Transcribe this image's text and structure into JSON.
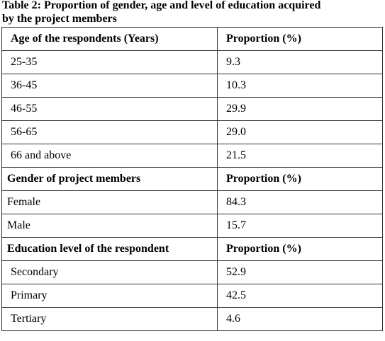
{
  "title": "Table 2: Proportion of gender, age and level of education acquired by the project members",
  "table": {
    "sections": [
      {
        "header": [
          "Age of the respondents (Years)",
          "Proportion (%)"
        ],
        "rows": [
          [
            "25-35",
            "9.3"
          ],
          [
            "36-45",
            "10.3"
          ],
          [
            "46-55",
            "29.9"
          ],
          [
            "56-65",
            "29.0"
          ],
          [
            "66 and above",
            "21.5"
          ]
        ]
      },
      {
        "header": [
          "Gender of project members",
          "Proportion (%)"
        ],
        "rows": [
          [
            "Female",
            "84.3"
          ],
          [
            "Male",
            "15.7"
          ]
        ]
      },
      {
        "header": [
          "Education level of the respondent",
          "Proportion (%)"
        ],
        "rows": [
          [
            "Secondary",
            "52.9"
          ],
          [
            "Primary",
            "42.5"
          ],
          [
            "Tertiary",
            "4.6"
          ]
        ]
      }
    ]
  }
}
